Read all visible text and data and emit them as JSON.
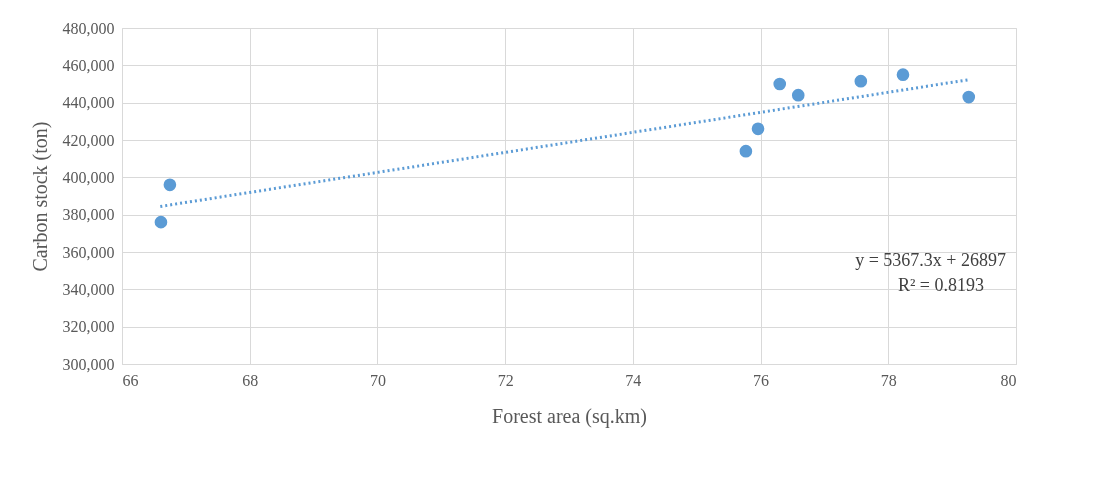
{
  "chart_data": {
    "type": "scatter",
    "xlabel": "Forest area (sq.km)",
    "ylabel": "Carbon stock (ton)",
    "xlim": [
      66,
      80
    ],
    "xticks": [
      66,
      68,
      70,
      72,
      74,
      76,
      78,
      80
    ],
    "ylim": [
      300000,
      480000
    ],
    "yticks": [
      {
        "value": 300000,
        "label": "300,000"
      },
      {
        "value": 320000,
        "label": "320,000"
      },
      {
        "value": 340000,
        "label": "340,000"
      },
      {
        "value": 360000,
        "label": "360,000"
      },
      {
        "value": 380000,
        "label": "380,000"
      },
      {
        "value": 400000,
        "label": "400,000"
      },
      {
        "value": 420000,
        "label": "420,000"
      },
      {
        "value": 440000,
        "label": "440,000"
      },
      {
        "value": 460000,
        "label": "460,000"
      },
      {
        "value": 480000,
        "label": "480,000"
      }
    ],
    "grid": true,
    "series": [
      {
        "color": "#5b9bd5",
        "marker": "circle",
        "x": [
          66.61,
          66.75,
          75.77,
          75.96,
          76.3,
          76.59,
          77.57,
          78.23,
          79.26
        ],
        "values": [
          376000,
          396000,
          414000,
          426000,
          450000,
          444000,
          451500,
          455000,
          443000
        ]
      },
      {
        "type": "line",
        "color": "#5b9bd5",
        "marker": "none",
        "line_style": "dotted",
        "x": [
          66.6,
          79.26
        ],
        "values": [
          384400,
          452300
        ]
      }
    ],
    "annotations": [
      "y = 5367.3x + 26897",
      "R² = 0.8193"
    ]
  }
}
